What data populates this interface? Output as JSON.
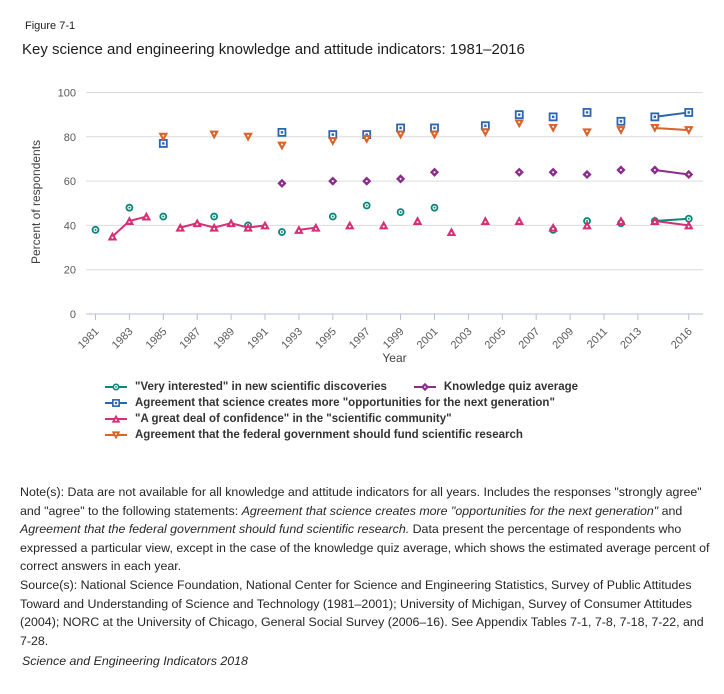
{
  "figure": {
    "label": "Figure 7-1",
    "title": "Key science and engineering knowledge and attitude indicators: 1981–2016"
  },
  "chart_data": {
    "type": "scatter",
    "title": "Key science and engineering knowledge and attitude indicators: 1981–2016",
    "xlabel": "Year",
    "ylabel": "Percent of respondents",
    "ylim": [
      0,
      100
    ],
    "yticks": [
      0,
      20,
      40,
      60,
      80,
      100
    ],
    "xticks": [
      1981,
      1983,
      1985,
      1987,
      1989,
      1991,
      1993,
      1995,
      1997,
      1999,
      2001,
      2003,
      2005,
      2007,
      2009,
      2011,
      2013,
      2016
    ],
    "x_range": [
      1980,
      2017
    ],
    "grid": true,
    "legend_position": "bottom",
    "legend_order": [
      0,
      3,
      1,
      2,
      4
    ],
    "series": [
      {
        "name": "\"Very interested\" in new scientific discoveries",
        "marker": "circle",
        "color": "#0d857b",
        "points": [
          [
            1981,
            38
          ],
          [
            1983,
            48
          ],
          [
            1985,
            44
          ],
          [
            1988,
            44
          ],
          [
            1990,
            40
          ],
          [
            1992,
            37
          ],
          [
            1995,
            44
          ],
          [
            1997,
            49
          ],
          [
            1999,
            46
          ],
          [
            2001,
            48
          ],
          [
            2008,
            38
          ],
          [
            2010,
            42
          ],
          [
            2012,
            41
          ],
          [
            2014,
            42
          ],
          [
            2016,
            43
          ]
        ],
        "line_runs": [
          [
            2014,
            2016
          ]
        ]
      },
      {
        "name": "Agreement that science creates more \"opportunities for the next generation\"",
        "marker": "square",
        "color": "#2d64af",
        "points": [
          [
            1985,
            77
          ],
          [
            1992,
            82
          ],
          [
            1995,
            81
          ],
          [
            1997,
            81
          ],
          [
            1999,
            84
          ],
          [
            2001,
            84
          ],
          [
            2004,
            85
          ],
          [
            2006,
            90
          ],
          [
            2008,
            89
          ],
          [
            2010,
            91
          ],
          [
            2012,
            87
          ],
          [
            2014,
            89
          ],
          [
            2016,
            91
          ]
        ],
        "line_runs": [
          [
            2014,
            2016
          ]
        ]
      },
      {
        "name": "\"A great deal of confidence\" in the \"scientific community\"",
        "marker": "triangle-up",
        "color": "#d62f77",
        "points": [
          [
            1982,
            35
          ],
          [
            1983,
            42
          ],
          [
            1984,
            44
          ],
          [
            1986,
            39
          ],
          [
            1987,
            41
          ],
          [
            1988,
            39
          ],
          [
            1989,
            41
          ],
          [
            1990,
            39
          ],
          [
            1991,
            40
          ],
          [
            1993,
            38
          ],
          [
            1994,
            39
          ],
          [
            1996,
            40
          ],
          [
            1998,
            40
          ],
          [
            2000,
            42
          ],
          [
            2002,
            37
          ],
          [
            2004,
            42
          ],
          [
            2006,
            42
          ],
          [
            2008,
            39
          ],
          [
            2010,
            40
          ],
          [
            2012,
            42
          ],
          [
            2014,
            42
          ],
          [
            2016,
            40
          ]
        ],
        "line_runs": [
          [
            1982,
            1983,
            1984
          ],
          [
            1986,
            1987,
            1988,
            1989,
            1990,
            1991
          ],
          [
            1993,
            1994
          ],
          [
            2014,
            2016
          ]
        ]
      },
      {
        "name": "Knowledge quiz average",
        "marker": "diamond",
        "color": "#8b2e8b",
        "points": [
          [
            1992,
            59
          ],
          [
            1995,
            60
          ],
          [
            1997,
            60
          ],
          [
            1999,
            61
          ],
          [
            2001,
            64
          ],
          [
            2006,
            64
          ],
          [
            2008,
            64
          ],
          [
            2010,
            63
          ],
          [
            2012,
            65
          ],
          [
            2014,
            65
          ],
          [
            2016,
            63
          ]
        ],
        "line_runs": [
          [
            2014,
            2016
          ]
        ]
      },
      {
        "name": "Agreement that the federal government should fund scientific research",
        "marker": "triangle-down",
        "color": "#d9632a",
        "points": [
          [
            1985,
            80
          ],
          [
            1988,
            81
          ],
          [
            1990,
            80
          ],
          [
            1992,
            76
          ],
          [
            1995,
            78
          ],
          [
            1997,
            79
          ],
          [
            1999,
            81
          ],
          [
            2001,
            81
          ],
          [
            2004,
            82
          ],
          [
            2006,
            86
          ],
          [
            2008,
            84
          ],
          [
            2010,
            82
          ],
          [
            2012,
            83
          ],
          [
            2014,
            84
          ],
          [
            2016,
            83
          ]
        ],
        "line_runs": [
          [
            2014,
            2016
          ]
        ]
      }
    ]
  },
  "notes": {
    "parts": [
      {
        "text": "Note(s): Data are not available for all knowledge and attitude indicators for all years. Includes the responses \"strongly agree\" and \"agree\" to the following statements: ",
        "italic": false
      },
      {
        "text": "Agreement that science creates more \"opportunities for the next generation\"",
        "italic": true
      },
      {
        "text": " and ",
        "italic": false
      },
      {
        "text": "Agreement that the federal government should fund scientific research.",
        "italic": true
      },
      {
        "text": " Data present the percentage of respondents who expressed a particular view, except in the case of the knowledge quiz average, which shows the estimated average percent of correct answers in each year.",
        "italic": false
      }
    ]
  },
  "sources": {
    "text": "Source(s): National Science Foundation, National Center for Science and Engineering Statistics, Survey of Public Attitudes Toward and Understanding of Science and Technology (1981–2001); University of Michigan, Survey of Consumer Attitudes (2004); NORC at the University of Chicago, General Social Survey (2006–16). See Appendix Tables 7-1, 7-8, 7-18, 7-22, and 7-28."
  },
  "footer": {
    "text": "Science and Engineering Indicators 2018"
  }
}
